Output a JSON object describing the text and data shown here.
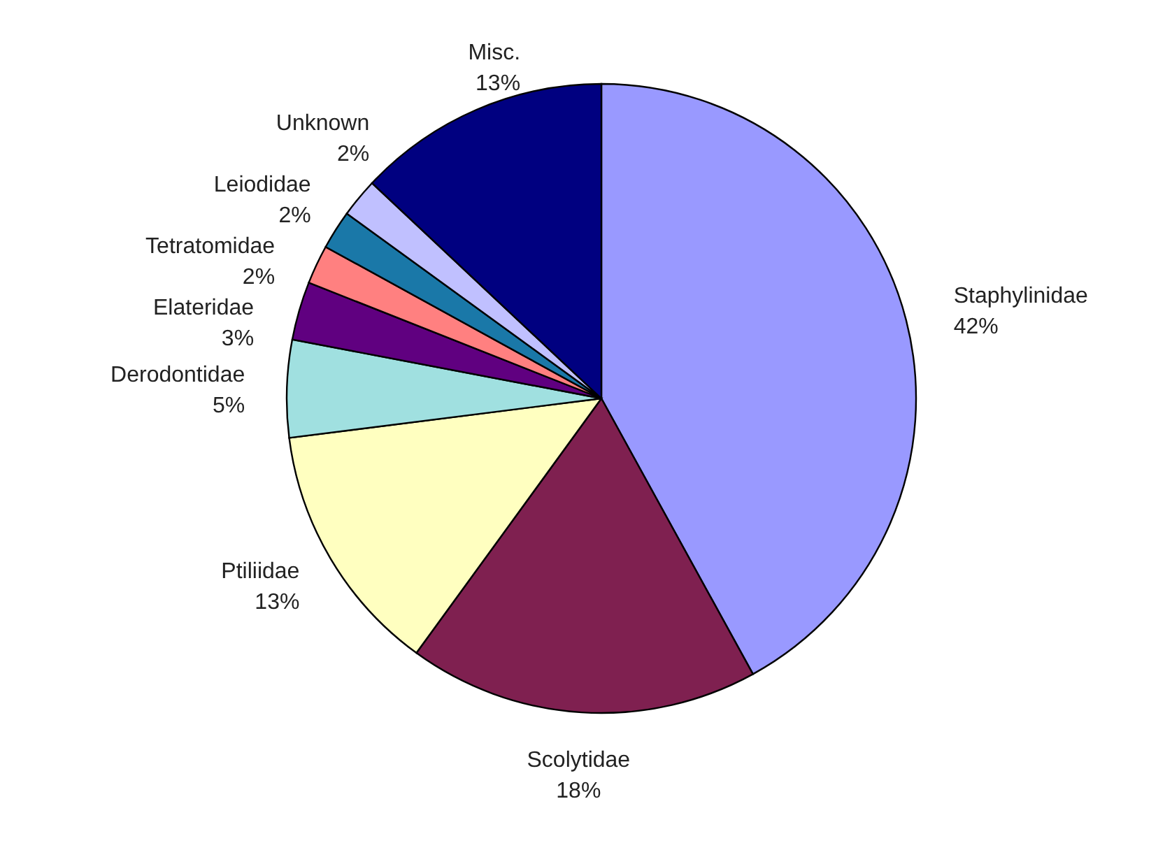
{
  "chart_data": {
    "type": "pie",
    "categories": [
      "Staphylinidae",
      "Scolytidae",
      "Ptiliidae",
      "Derodontidae",
      "Elateridae",
      "Tetratomidae",
      "Leiodidae",
      "Unknown",
      "Misc."
    ],
    "values": [
      42,
      18,
      13,
      5,
      3,
      2,
      2,
      2,
      13
    ],
    "colors": [
      "#9999ff",
      "#7f2050",
      "#ffffc0",
      "#a0e0e0",
      "#600080",
      "#ff8080",
      "#1a78a8",
      "#c0c0ff",
      "#000080"
    ],
    "value_labels": [
      "42%",
      "18%",
      "13%",
      "5%",
      "3%",
      "2%",
      "2%",
      "2%",
      "13%"
    ]
  }
}
